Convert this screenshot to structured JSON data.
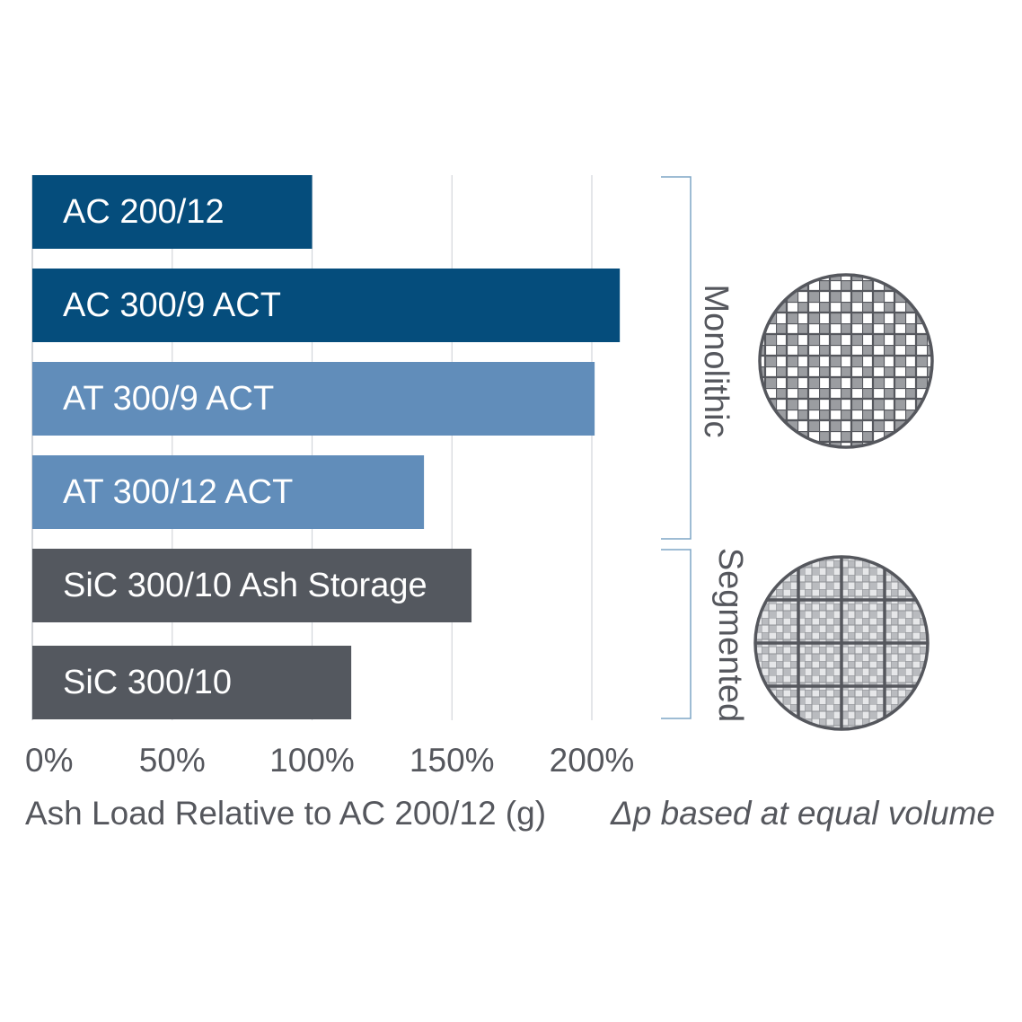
{
  "chart_data": {
    "type": "bar",
    "orientation": "horizontal",
    "categories": [
      "AC 200/12",
      "AC 300/9 ACT",
      "AT 300/9 ACT",
      "AT 300/12 ACT",
      "SiC 300/10 Ash Storage",
      "SiC 300/10"
    ],
    "values": [
      100,
      210,
      201,
      140,
      157,
      114
    ],
    "colors": [
      "#054d7c",
      "#054d7c",
      "#618dba",
      "#618dba",
      "#54585f",
      "#54585f"
    ],
    "xlim": [
      0,
      200
    ],
    "xticks": [
      0,
      50,
      100,
      150,
      200
    ],
    "tick_labels": [
      "0%",
      "50%",
      "100%",
      "150%",
      "200%"
    ],
    "xlabel": "Ash Load Relative to AC 200/12 (g)",
    "note": "Δp based at equal volume",
    "grid": true,
    "groups": [
      {
        "label": "Monolithic",
        "categories": [
          "AC 200/12",
          "AC 300/9 ACT",
          "AT 300/9 ACT",
          "AT 300/12 ACT"
        ],
        "icon": "monolithic-filter-cross-section-icon"
      },
      {
        "label": "Segmented",
        "categories": [
          "SiC 300/10 Ash Storage",
          "SiC 300/10"
        ],
        "icon": "segmented-filter-cross-section-icon"
      }
    ]
  }
}
